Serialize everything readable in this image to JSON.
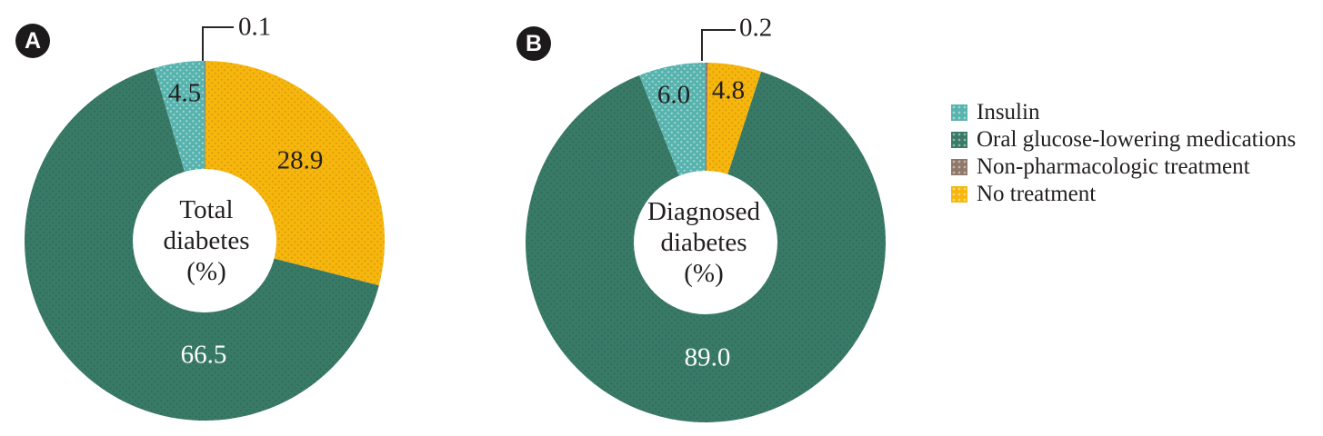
{
  "colors": {
    "insulin": "#58b3ae",
    "insulin_dot": "#aadcd6",
    "oral": "#397a67",
    "oral_dot": "#2f6b59",
    "nonpharm": "#8f7869",
    "nonpharm_dot": "#a99180",
    "no_treatment": "#f6b70d",
    "no_treatment_dot": "#e0970f",
    "text": "#231f20",
    "label_on_green": "#fdfdfc",
    "badge_background": "#1d1a1b",
    "badge_text": "#ffffff",
    "callout_line": "#2a2627",
    "hole_fill": "#ffffff"
  },
  "legend": {
    "position": "right",
    "items": [
      {
        "key": "insulin",
        "label": "Insulin"
      },
      {
        "key": "oral",
        "label": "Oral glucose-lowering medications"
      },
      {
        "key": "nonpharm",
        "label": "Non-pharmacologic treatment"
      },
      {
        "key": "no_treatment",
        "label": "No treatment"
      }
    ]
  },
  "chart_data": [
    {
      "type": "pie",
      "subtype": "donut",
      "badge": "A",
      "center_label": "Total diabetes (%)",
      "center_lines": [
        "Total",
        "diabetes",
        "(%)"
      ],
      "order": "clockwise-from-top",
      "categories": [
        "Non-pharmacologic treatment",
        "No treatment",
        "Oral glucose-lowering medications",
        "Insulin"
      ],
      "slice_keys": [
        "nonpharm",
        "no_treatment",
        "oral",
        "insulin"
      ],
      "values": [
        0.1,
        28.9,
        66.5,
        4.5
      ],
      "labels": [
        "0.1",
        "28.9",
        "66.5",
        "4.5"
      ],
      "callout_slice": "Non-pharmacologic treatment"
    },
    {
      "type": "pie",
      "subtype": "donut",
      "badge": "B",
      "center_label": "Diagnosed diabetes (%)",
      "center_lines": [
        "Diagnosed",
        "diabetes",
        "(%)"
      ],
      "order": "clockwise-from-top",
      "categories": [
        "Non-pharmacologic treatment",
        "No treatment",
        "Oral glucose-lowering medications",
        "Insulin"
      ],
      "slice_keys": [
        "nonpharm",
        "no_treatment",
        "oral",
        "insulin"
      ],
      "values": [
        0.2,
        4.8,
        89.0,
        6.0
      ],
      "labels": [
        "0.2",
        "4.8",
        "89.0",
        "6.0"
      ],
      "callout_slice": "Non-pharmacologic treatment"
    }
  ]
}
